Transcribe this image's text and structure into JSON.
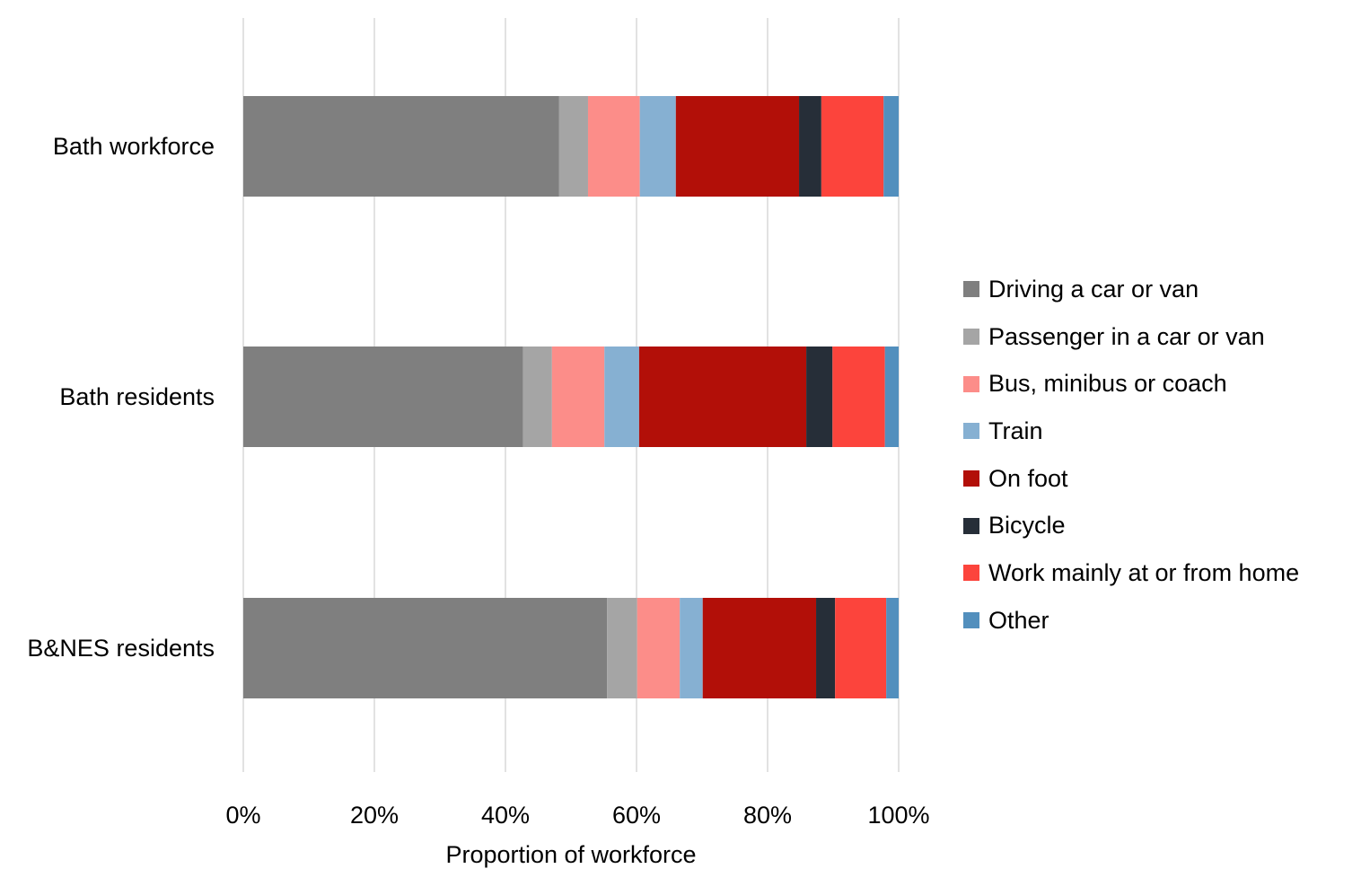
{
  "chart_data": {
    "type": "bar",
    "orientation": "horizontal",
    "stacked": "percent",
    "title": "",
    "xlabel": "Proportion of workforce",
    "ylabel": "",
    "xlim": [
      0,
      100
    ],
    "x_ticks": [
      "0%",
      "20%",
      "40%",
      "60%",
      "80%",
      "100%"
    ],
    "grid": "vertical",
    "legend_position": "right",
    "categories": [
      "Bath workforce",
      "Bath residents",
      "B&NES residents"
    ],
    "series": [
      {
        "name": "Driving a car or van",
        "color": "#7f7f7f",
        "values": [
          48.2,
          42.7,
          55.5
        ]
      },
      {
        "name": "Passenger in a car or van",
        "color": "#a5a5a5",
        "values": [
          4.4,
          4.4,
          4.6
        ]
      },
      {
        "name": "Bus, minibus or coach",
        "color": "#fc8d89",
        "values": [
          7.9,
          8.0,
          6.5
        ]
      },
      {
        "name": "Train",
        "color": "#86b0d2",
        "values": [
          5.5,
          5.3,
          3.5
        ]
      },
      {
        "name": "On foot",
        "color": "#b20f08",
        "values": [
          18.8,
          25.5,
          17.3
        ]
      },
      {
        "name": "Bicycle",
        "color": "#262e38",
        "values": [
          3.4,
          4.0,
          2.9
        ]
      },
      {
        "name": "Work mainly at or from home",
        "color": "#fc443c",
        "values": [
          9.5,
          8.0,
          7.8
        ]
      },
      {
        "name": "Other",
        "color": "#528fbd",
        "values": [
          2.3,
          2.1,
          1.9
        ]
      }
    ]
  }
}
